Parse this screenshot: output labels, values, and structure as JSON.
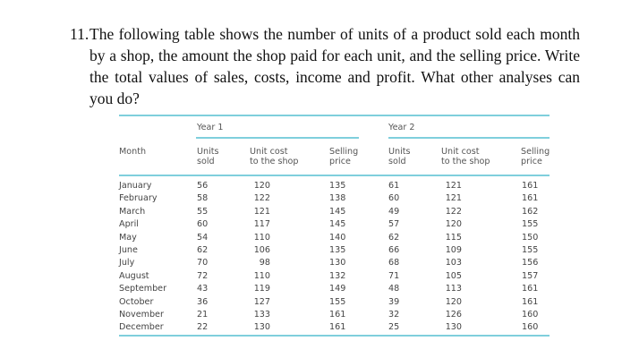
{
  "question": {
    "number": "11.",
    "text": "The following table shows the number of units of a product sold each month by a shop, the amount the shop paid for each unit, and the selling price. Write  the total values of sales, costs, income and profit. What other analyses can you do?"
  },
  "table": {
    "month_header": "Month",
    "groups": [
      {
        "label": "Year 1",
        "columns": [
          {
            "line1": "Units",
            "line2": "sold"
          },
          {
            "line1": "Unit cost",
            "line2": "to the shop"
          },
          {
            "line1": "Selling",
            "line2": "price"
          }
        ]
      },
      {
        "label": "Year 2",
        "columns": [
          {
            "line1": "Units",
            "line2": "sold"
          },
          {
            "line1": "Unit cost",
            "line2": "to the shop"
          },
          {
            "line1": "Selling",
            "line2": "price"
          }
        ]
      }
    ],
    "rows": [
      {
        "month": "January",
        "y1_units": "56",
        "y1_cost": "120",
        "y1_price": "135",
        "y2_units": "61",
        "y2_cost": "121",
        "y2_price": "161"
      },
      {
        "month": "February",
        "y1_units": "58",
        "y1_cost": "122",
        "y1_price": "138",
        "y2_units": "60",
        "y2_cost": "121",
        "y2_price": "161"
      },
      {
        "month": "March",
        "y1_units": "55",
        "y1_cost": "121",
        "y1_price": "145",
        "y2_units": "49",
        "y2_cost": "122",
        "y2_price": "162"
      },
      {
        "month": "April",
        "y1_units": "60",
        "y1_cost": "117",
        "y1_price": "145",
        "y2_units": "57",
        "y2_cost": "120",
        "y2_price": "155"
      },
      {
        "month": "May",
        "y1_units": "54",
        "y1_cost": "110",
        "y1_price": "140",
        "y2_units": "62",
        "y2_cost": "115",
        "y2_price": "150"
      },
      {
        "month": "June",
        "y1_units": "62",
        "y1_cost": "106",
        "y1_price": "135",
        "y2_units": "66",
        "y2_cost": "109",
        "y2_price": "155"
      },
      {
        "month": "July",
        "y1_units": "70",
        "y1_cost": "98",
        "y1_price": "130",
        "y2_units": "68",
        "y2_cost": "103",
        "y2_price": "156"
      },
      {
        "month": "August",
        "y1_units": "72",
        "y1_cost": "110",
        "y1_price": "132",
        "y2_units": "71",
        "y2_cost": "105",
        "y2_price": "157"
      },
      {
        "month": "September",
        "y1_units": "43",
        "y1_cost": "119",
        "y1_price": "149",
        "y2_units": "48",
        "y2_cost": "113",
        "y2_price": "161"
      },
      {
        "month": "October",
        "y1_units": "36",
        "y1_cost": "127",
        "y1_price": "155",
        "y2_units": "39",
        "y2_cost": "120",
        "y2_price": "161"
      },
      {
        "month": "November",
        "y1_units": "21",
        "y1_cost": "133",
        "y1_price": "161",
        "y2_units": "32",
        "y2_cost": "126",
        "y2_price": "160"
      },
      {
        "month": "December",
        "y1_units": "22",
        "y1_cost": "130",
        "y1_price": "161",
        "y2_units": "25",
        "y2_cost": "130",
        "y2_price": "160"
      }
    ]
  },
  "colors": {
    "rule": "#7fcfdc",
    "text": "#444444"
  }
}
